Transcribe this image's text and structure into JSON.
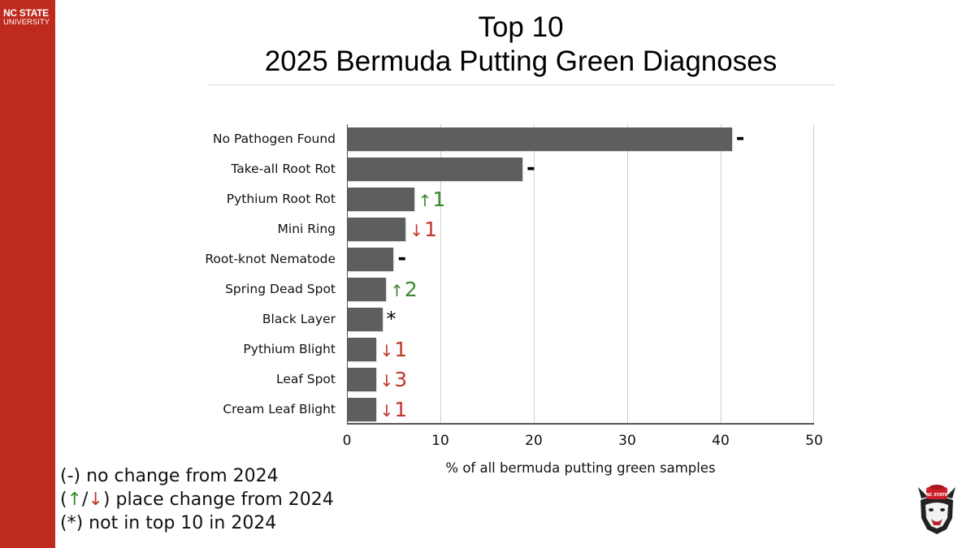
{
  "brand": {
    "line1": "NC STATE",
    "line2": "UNIVERSITY",
    "color": "#bf2a1f"
  },
  "title": {
    "line1": "Top 10",
    "line2": "2025 Bermuda Putting Green Diagnoses"
  },
  "chart_data": {
    "type": "bar",
    "orientation": "horizontal",
    "title": "Top 10 2025 Bermuda Putting Green Diagnoses",
    "xlabel": "% of all bermuda putting green samples",
    "ylabel": "",
    "xlim": [
      0,
      50
    ],
    "xticks": [
      0,
      10,
      20,
      30,
      40,
      50
    ],
    "grid": "vertical",
    "bar_color": "#5e5e5e",
    "categories": [
      "No Pathogen Found",
      "Take-all Root Rot",
      "Pythium Root Rot",
      "Mini Ring",
      "Root-knot Nematode",
      "Spring Dead Spot",
      "Black Layer",
      "Pythium Blight",
      "Leaf Spot",
      "Cream Leaf Blight"
    ],
    "values": [
      41.1,
      18.7,
      7.1,
      6.2,
      4.9,
      4.1,
      3.7,
      3.0,
      3.0,
      3.0
    ],
    "annotations": [
      {
        "category": "No Pathogen Found",
        "type": "same",
        "text": "-"
      },
      {
        "category": "Take-all Root Rot",
        "type": "same",
        "text": "-"
      },
      {
        "category": "Pythium Root Rot",
        "type": "up",
        "arrow": "↑",
        "text": "1"
      },
      {
        "category": "Mini Ring",
        "type": "down",
        "arrow": "↓",
        "text": "1"
      },
      {
        "category": "Root-knot Nematode",
        "type": "same",
        "text": "-"
      },
      {
        "category": "Spring Dead Spot",
        "type": "up",
        "arrow": "↑",
        "text": "2"
      },
      {
        "category": "Black Layer",
        "type": "new",
        "text": "*"
      },
      {
        "category": "Pythium Blight",
        "type": "down",
        "arrow": "↓",
        "text": "1"
      },
      {
        "category": "Leaf Spot",
        "type": "down",
        "arrow": "↓",
        "text": "3"
      },
      {
        "category": "Cream Leaf Blight",
        "type": "down",
        "arrow": "↓",
        "text": "1"
      }
    ],
    "colors": {
      "up": "#3a8a2e",
      "down": "#c0392b",
      "same": "#000000"
    }
  },
  "legend": {
    "line1": {
      "prefix": "(-)",
      "text": " no change from 2024"
    },
    "line2": {
      "open": "(",
      "up": "↑",
      "slash": "/",
      "down": "↓",
      "close": ")",
      "text": " place change from 2024"
    },
    "line3": {
      "prefix": "(*)",
      "text": " not in top 10 in 2024"
    }
  },
  "mascot": {
    "hat_text": "NC STATE"
  }
}
